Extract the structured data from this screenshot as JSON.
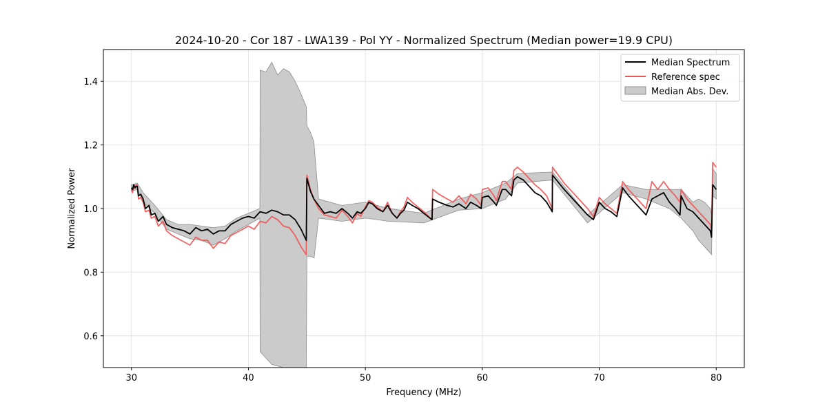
{
  "chart_data": {
    "type": "line",
    "title": "2024-10-20 - Cor 187 - LWA139 - Pol YY - Normalized Spectrum (Median power=19.9 CPU)",
    "xlabel": "Frequency (MHz)",
    "ylabel": "Normalized Power",
    "xlim": [
      27.6,
      82.4
    ],
    "ylim": [
      0.5,
      1.5
    ],
    "xticks": [
      30,
      40,
      50,
      60,
      70,
      80
    ],
    "yticks": [
      0.6,
      0.8,
      1.0,
      1.2,
      1.4
    ],
    "xtick_labels": [
      "30",
      "40",
      "50",
      "60",
      "70",
      "80"
    ],
    "ytick_labels": [
      "0.6",
      "0.8",
      "1.0",
      "1.2",
      "1.4"
    ],
    "grid": true,
    "legend_position": "top-right",
    "legend": [
      "Median Spectrum",
      "Reference spec",
      "Median Abs. Dev."
    ],
    "colors": {
      "median": "#000000",
      "reference": "#ee5555",
      "mad_fill": "#cbcbcb",
      "mad_edge": "#8c8c8c"
    },
    "series": [
      {
        "name": "Median Spectrum",
        "x": [
          30.0,
          30.1,
          30.2,
          30.3,
          30.4,
          30.5,
          30.6,
          30.8,
          31.0,
          31.2,
          31.5,
          31.7,
          32.0,
          32.3,
          32.7,
          33.0,
          33.5,
          34.0,
          34.5,
          35.0,
          35.5,
          36.0,
          36.5,
          37.0,
          37.5,
          38.0,
          38.5,
          39.0,
          39.5,
          40.0,
          40.5,
          41.0,
          41.5,
          42.0,
          42.5,
          43.0,
          43.5,
          44.0,
          44.5,
          44.95,
          45.0,
          45.3,
          45.6,
          46.0,
          46.5,
          47.0,
          47.5,
          48.0,
          48.5,
          48.9,
          49.3,
          49.6,
          50.0,
          50.3,
          50.6,
          51.0,
          51.5,
          51.9,
          52.3,
          52.7,
          53.0,
          53.3,
          53.6,
          54.0,
          54.5,
          55.0,
          55.7,
          55.75,
          56.3,
          57.0,
          57.5,
          58.0,
          58.6,
          59.0,
          59.5,
          59.9,
          60.0,
          60.5,
          61.0,
          61.2,
          61.7,
          62.0,
          62.5,
          62.7,
          63.0,
          63.5,
          64.0,
          64.5,
          65.0,
          65.5,
          65.98,
          66.0,
          67.0,
          68.0,
          69.0,
          69.5,
          70.0,
          70.5,
          71.0,
          71.5,
          72.0,
          72.5,
          73.0,
          73.5,
          74.0,
          74.5,
          75.0,
          75.5,
          76.0,
          76.5,
          76.9,
          77.0,
          77.5,
          78.0,
          78.5,
          79.0,
          79.5,
          79.6,
          79.7,
          80.0
        ],
        "values": [
          1.065,
          1.06,
          1.075,
          1.065,
          1.07,
          1.07,
          1.04,
          1.045,
          1.03,
          1.0,
          1.01,
          0.98,
          0.985,
          0.96,
          0.975,
          0.95,
          0.94,
          0.935,
          0.93,
          0.92,
          0.94,
          0.93,
          0.935,
          0.92,
          0.93,
          0.93,
          0.95,
          0.96,
          0.97,
          0.975,
          0.97,
          0.99,
          0.985,
          0.995,
          0.99,
          0.98,
          0.98,
          0.965,
          0.935,
          0.9,
          1.095,
          1.055,
          1.03,
          1.01,
          0.985,
          0.99,
          0.985,
          1.0,
          0.985,
          0.97,
          0.99,
          0.985,
          1.0,
          1.02,
          1.015,
          1.0,
          0.99,
          1.01,
          0.985,
          0.97,
          0.985,
          0.995,
          1.02,
          1.01,
          1.0,
          0.985,
          0.965,
          1.03,
          1.02,
          1.01,
          1.005,
          1.015,
          1.0,
          1.02,
          1.01,
          1.0,
          1.035,
          1.04,
          1.02,
          1.01,
          1.06,
          1.06,
          1.04,
          1.09,
          1.1,
          1.09,
          1.07,
          1.05,
          1.04,
          1.02,
          0.99,
          1.105,
          1.06,
          1.02,
          0.98,
          0.965,
          1.02,
          1.0,
          0.99,
          0.975,
          1.065,
          1.04,
          1.02,
          1.0,
          0.98,
          1.03,
          1.04,
          1.05,
          1.02,
          1.0,
          0.98,
          1.04,
          1.0,
          0.99,
          0.97,
          0.95,
          0.93,
          0.91,
          1.075,
          1.06
        ]
      },
      {
        "name": "Reference spec",
        "x": [
          30.0,
          30.1,
          30.2,
          30.3,
          30.4,
          30.5,
          30.6,
          30.8,
          31.0,
          31.2,
          31.5,
          31.7,
          32.0,
          32.3,
          32.7,
          33.0,
          33.5,
          34.0,
          34.5,
          35.0,
          35.5,
          36.0,
          36.5,
          37.0,
          37.5,
          38.0,
          38.5,
          39.0,
          39.5,
          40.0,
          40.5,
          41.0,
          41.5,
          42.0,
          42.5,
          43.0,
          43.5,
          44.0,
          44.5,
          44.95,
          45.0,
          45.3,
          45.6,
          46.0,
          46.5,
          47.0,
          47.5,
          48.0,
          48.5,
          48.9,
          49.3,
          49.6,
          50.0,
          50.3,
          50.6,
          51.0,
          51.5,
          51.9,
          52.3,
          52.7,
          53.0,
          53.3,
          53.6,
          54.0,
          54.5,
          55.0,
          55.7,
          55.75,
          56.3,
          57.0,
          57.5,
          58.0,
          58.6,
          59.0,
          59.5,
          59.9,
          60.0,
          60.5,
          61.0,
          61.2,
          61.7,
          62.0,
          62.5,
          62.7,
          63.0,
          63.5,
          64.0,
          64.5,
          65.0,
          65.5,
          65.98,
          66.0,
          67.0,
          68.0,
          69.0,
          69.5,
          70.0,
          70.5,
          71.0,
          71.5,
          72.0,
          72.5,
          73.0,
          73.5,
          74.0,
          74.5,
          75.0,
          75.5,
          76.0,
          76.5,
          76.9,
          77.0,
          77.5,
          78.0,
          78.5,
          79.0,
          79.5,
          79.6,
          79.7,
          80.0
        ],
        "values": [
          1.06,
          1.05,
          1.07,
          1.065,
          1.075,
          1.075,
          1.03,
          1.035,
          1.02,
          0.99,
          0.995,
          0.97,
          0.975,
          0.945,
          0.96,
          0.93,
          0.915,
          0.905,
          0.895,
          0.885,
          0.91,
          0.9,
          0.9,
          0.875,
          0.895,
          0.89,
          0.915,
          0.925,
          0.935,
          0.945,
          0.935,
          0.96,
          0.955,
          0.975,
          0.965,
          0.945,
          0.94,
          0.915,
          0.88,
          0.855,
          1.105,
          1.06,
          1.03,
          1.0,
          0.98,
          0.975,
          0.97,
          0.995,
          0.975,
          0.955,
          0.985,
          0.975,
          1.005,
          1.025,
          1.02,
          1.005,
          0.99,
          1.02,
          0.985,
          0.97,
          0.99,
          1.005,
          1.035,
          1.02,
          1.005,
          0.99,
          0.965,
          1.06,
          1.045,
          1.03,
          1.02,
          1.04,
          1.015,
          1.045,
          1.03,
          1.01,
          1.06,
          1.065,
          1.04,
          1.025,
          1.085,
          1.085,
          1.06,
          1.12,
          1.13,
          1.115,
          1.095,
          1.075,
          1.06,
          1.04,
          1.0,
          1.13,
          1.08,
          1.04,
          1.0,
          0.975,
          1.035,
          1.015,
          1.0,
          0.985,
          1.085,
          1.06,
          1.04,
          1.02,
          1.0,
          1.085,
          1.06,
          1.085,
          1.06,
          1.04,
          1.02,
          1.06,
          1.03,
          1.01,
          0.99,
          0.97,
          0.95,
          0.93,
          1.145,
          1.13
        ]
      }
    ],
    "mad_band": {
      "name": "Median Abs. Dev.",
      "x": [
        30.0,
        30.5,
        31.0,
        32.0,
        33.0,
        34.0,
        35.0,
        36.0,
        37.0,
        38.0,
        39.0,
        40.0,
        40.98,
        41.0,
        41.5,
        42.0,
        42.5,
        43.0,
        43.5,
        44.0,
        44.5,
        44.95,
        45.0,
        45.3,
        45.6,
        45.62,
        46.0,
        48.0,
        50.0,
        52.0,
        55.0,
        58.0,
        60.0,
        62.0,
        63.0,
        66.0,
        69.0,
        72.0,
        74.0,
        76.0,
        77.0,
        78.0,
        78.5,
        79.0,
        79.5,
        79.6,
        79.7,
        80.0
      ],
      "upper": [
        1.075,
        1.08,
        1.05,
        1.01,
        0.965,
        0.95,
        0.95,
        0.945,
        0.94,
        0.945,
        0.97,
        0.985,
        1.0,
        1.435,
        1.43,
        1.46,
        1.42,
        1.44,
        1.43,
        1.4,
        1.36,
        1.32,
        1.26,
        1.24,
        1.21,
        1.2,
        1.03,
        1.01,
        1.02,
        1.0,
        0.985,
        1.03,
        1.05,
        1.08,
        1.11,
        1.115,
        0.98,
        1.075,
        1.06,
        1.06,
        1.06,
        1.02,
        1.03,
        1.02,
        1.0,
        0.98,
        1.125,
        1.11
      ],
      "lower": [
        1.055,
        1.06,
        1.02,
        0.985,
        0.935,
        0.92,
        0.905,
        0.9,
        0.885,
        0.905,
        0.93,
        0.95,
        0.97,
        0.55,
        0.53,
        0.51,
        0.505,
        0.5,
        0.5,
        0.5,
        0.5,
        0.5,
        0.85,
        0.85,
        0.845,
        0.845,
        0.97,
        0.96,
        0.97,
        0.96,
        0.955,
        0.995,
        1.0,
        1.03,
        1.08,
        1.09,
        0.955,
        1.05,
        1.03,
        1.0,
        0.97,
        0.93,
        0.9,
        0.88,
        0.86,
        0.855,
        1.04,
        1.03
      ]
    }
  }
}
